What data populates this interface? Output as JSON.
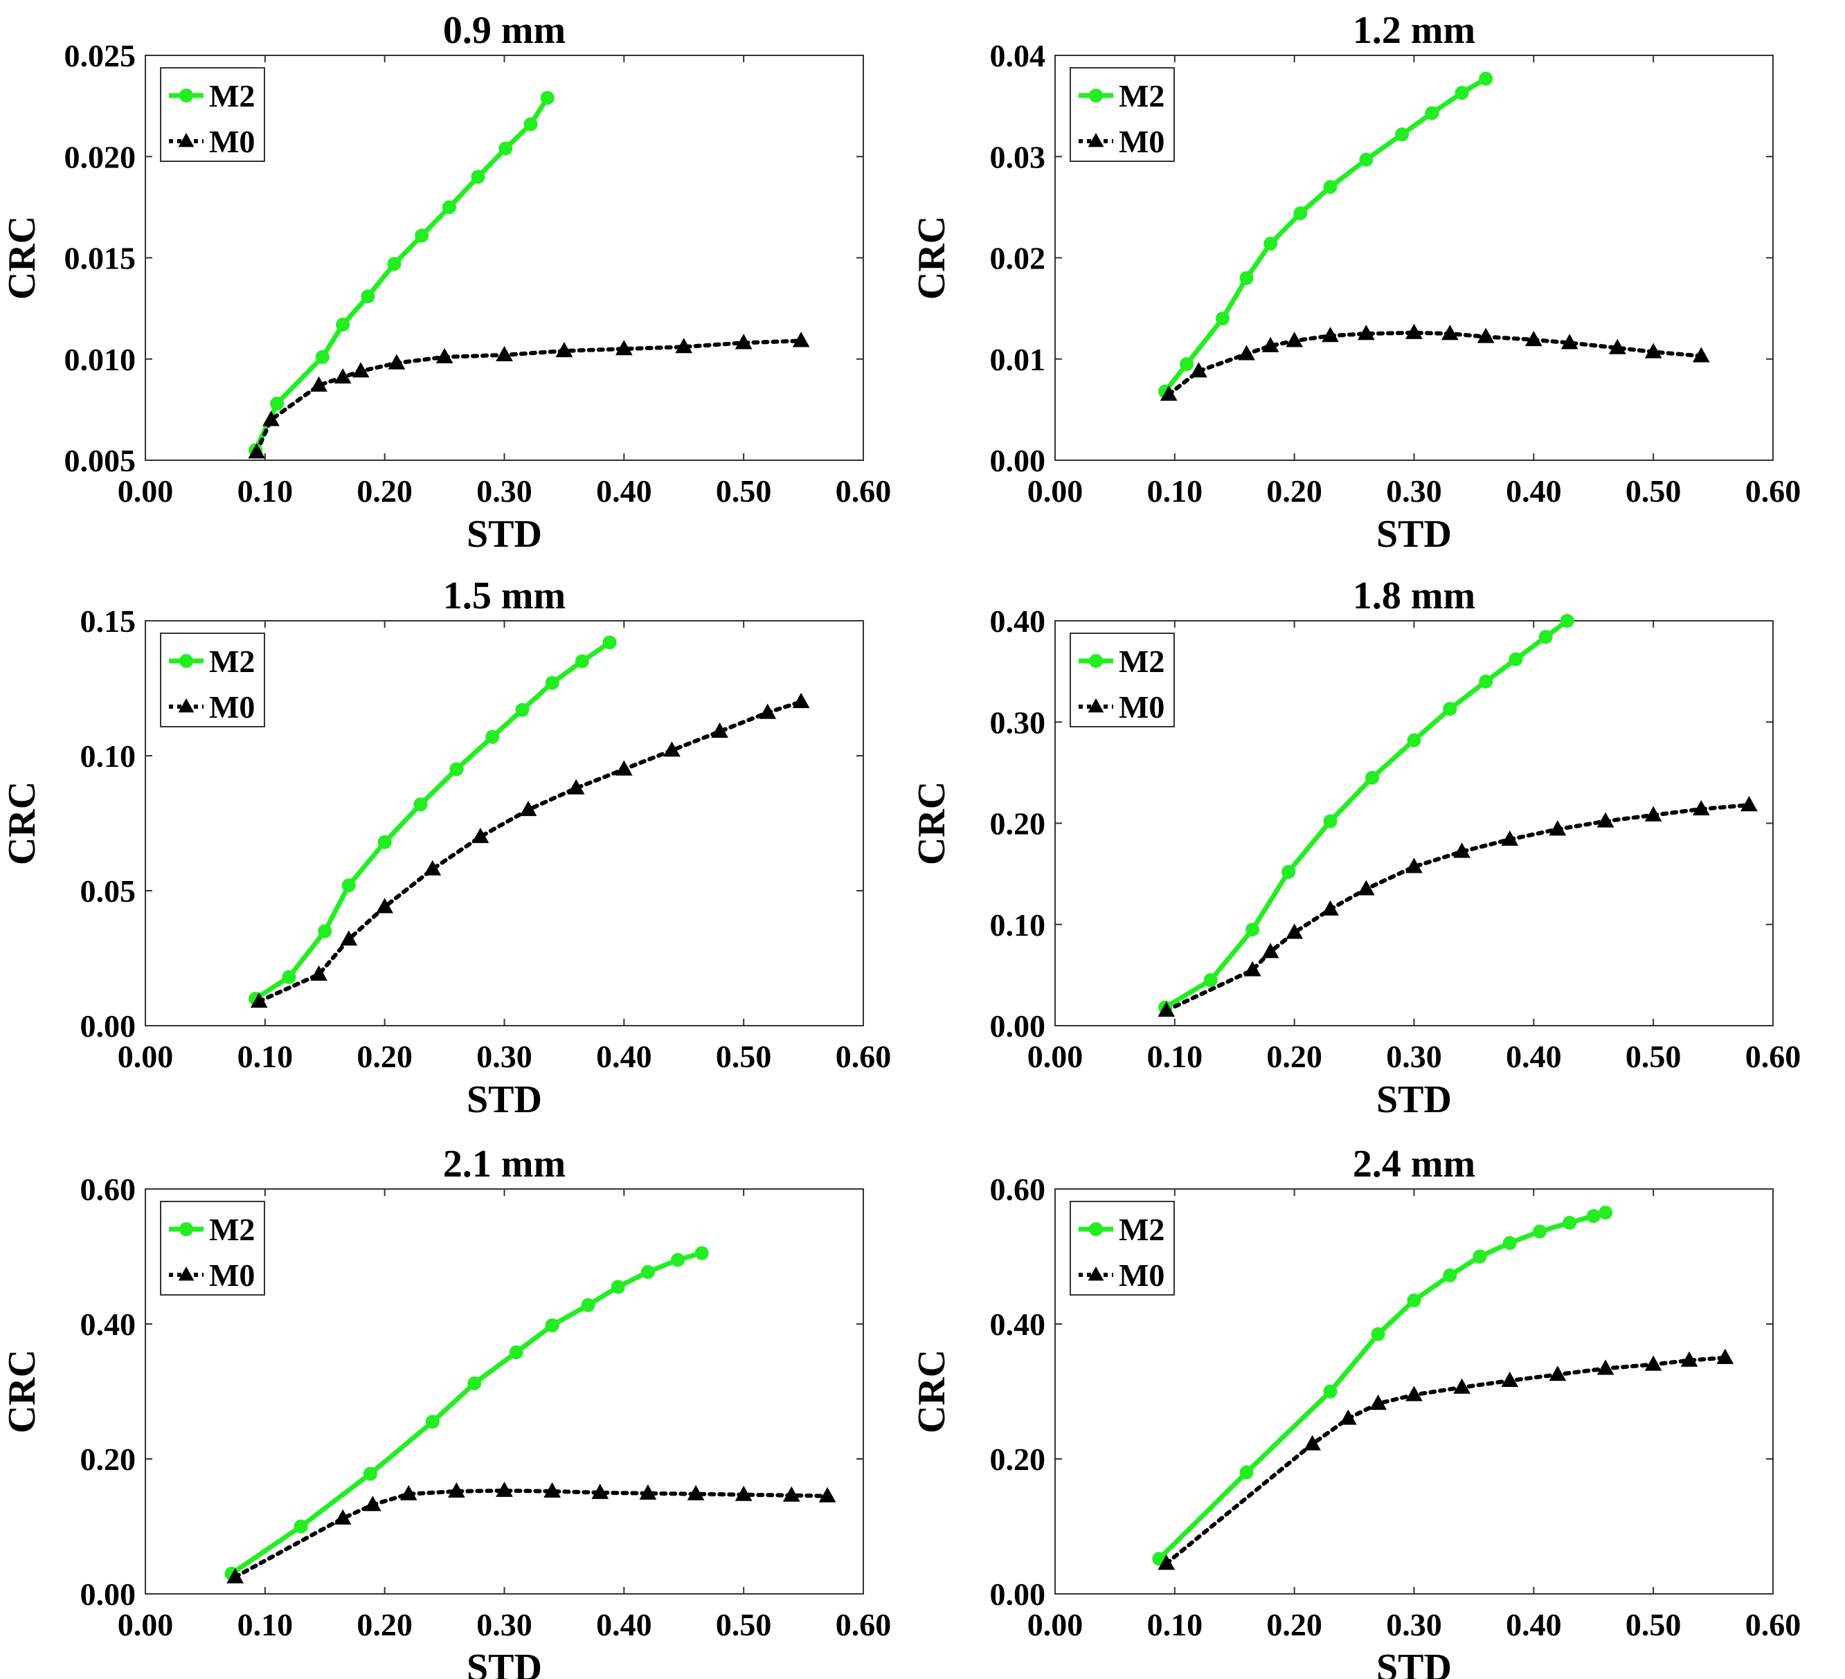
{
  "colors": {
    "m2": "#22ee22",
    "m0": "#000000",
    "axis": "#333333",
    "background": "#ffffff"
  },
  "chart_data": [
    {
      "type": "line",
      "title": "0.9 mm",
      "xlabel": "STD",
      "ylabel": "CRC",
      "xlim": [
        0,
        0.6
      ],
      "ylim": [
        0.005,
        0.025
      ],
      "xticks": [
        "0.00",
        "0.10",
        "0.20",
        "0.30",
        "0.40",
        "0.50",
        "0.60"
      ],
      "yticks": [
        "0.005",
        "0.010",
        "0.015",
        "0.020",
        "0.025"
      ],
      "legend": {
        "position": "top-left",
        "entries": [
          "M2",
          "M0"
        ]
      },
      "series": [
        {
          "name": "M2",
          "marker": "circle",
          "x": [
            0.092,
            0.11,
            0.148,
            0.165,
            0.186,
            0.208,
            0.231,
            0.254,
            0.278,
            0.301,
            0.322,
            0.336
          ],
          "y": [
            0.0055,
            0.0078,
            0.0101,
            0.0117,
            0.0131,
            0.0147,
            0.0161,
            0.0175,
            0.019,
            0.0204,
            0.0216,
            0.0229
          ]
        },
        {
          "name": "M0",
          "marker": "triangle",
          "x": [
            0.093,
            0.105,
            0.145,
            0.165,
            0.18,
            0.21,
            0.25,
            0.3,
            0.35,
            0.4,
            0.45,
            0.5,
            0.548
          ],
          "y": [
            0.0054,
            0.007,
            0.0087,
            0.0091,
            0.0094,
            0.0098,
            0.0101,
            0.0102,
            0.0104,
            0.0105,
            0.0106,
            0.0108,
            0.0109
          ]
        }
      ]
    },
    {
      "type": "line",
      "title": "1.2 mm",
      "xlabel": "STD",
      "ylabel": "CRC",
      "xlim": [
        0,
        0.6
      ],
      "ylim": [
        0,
        0.04
      ],
      "xticks": [
        "0.00",
        "0.10",
        "0.20",
        "0.30",
        "0.40",
        "0.50",
        "0.60"
      ],
      "yticks": [
        "0.00",
        "0.01",
        "0.02",
        "0.03",
        "0.04"
      ],
      "legend": {
        "position": "top-left",
        "entries": [
          "M2",
          "M0"
        ]
      },
      "series": [
        {
          "name": "M2",
          "marker": "circle",
          "x": [
            0.092,
            0.11,
            0.14,
            0.16,
            0.18,
            0.205,
            0.23,
            0.26,
            0.29,
            0.315,
            0.34,
            0.36
          ],
          "y": [
            0.0068,
            0.0095,
            0.014,
            0.018,
            0.0214,
            0.0244,
            0.027,
            0.0297,
            0.0322,
            0.0343,
            0.0363,
            0.0377
          ]
        },
        {
          "name": "M0",
          "marker": "triangle",
          "x": [
            0.095,
            0.12,
            0.16,
            0.18,
            0.2,
            0.23,
            0.26,
            0.3,
            0.33,
            0.36,
            0.4,
            0.43,
            0.47,
            0.5,
            0.54
          ],
          "y": [
            0.0065,
            0.0088,
            0.0105,
            0.0113,
            0.0118,
            0.0123,
            0.0125,
            0.0126,
            0.0125,
            0.0122,
            0.0119,
            0.0116,
            0.0111,
            0.0107,
            0.0103
          ]
        }
      ]
    },
    {
      "type": "line",
      "title": "1.5 mm",
      "xlabel": "STD",
      "ylabel": "CRC",
      "xlim": [
        0,
        0.6
      ],
      "ylim": [
        0,
        0.15
      ],
      "xticks": [
        "0.00",
        "0.10",
        "0.20",
        "0.30",
        "0.40",
        "0.50",
        "0.60"
      ],
      "yticks": [
        "0.00",
        "0.05",
        "0.10",
        "0.15"
      ],
      "legend": {
        "position": "top-left",
        "entries": [
          "M2",
          "M0"
        ]
      },
      "series": [
        {
          "name": "M2",
          "marker": "circle",
          "x": [
            0.092,
            0.12,
            0.15,
            0.17,
            0.2,
            0.23,
            0.26,
            0.29,
            0.315,
            0.34,
            0.365,
            0.388
          ],
          "y": [
            0.01,
            0.018,
            0.035,
            0.052,
            0.068,
            0.082,
            0.095,
            0.107,
            0.117,
            0.127,
            0.135,
            0.142
          ]
        },
        {
          "name": "M0",
          "marker": "triangle",
          "x": [
            0.095,
            0.145,
            0.17,
            0.2,
            0.24,
            0.28,
            0.32,
            0.36,
            0.4,
            0.44,
            0.48,
            0.52,
            0.548
          ],
          "y": [
            0.009,
            0.019,
            0.032,
            0.044,
            0.058,
            0.07,
            0.08,
            0.088,
            0.095,
            0.102,
            0.109,
            0.116,
            0.12
          ]
        }
      ]
    },
    {
      "type": "line",
      "title": "1.8 mm",
      "xlabel": "STD",
      "ylabel": "CRC",
      "xlim": [
        0,
        0.6
      ],
      "ylim": [
        0,
        0.4
      ],
      "xticks": [
        "0.00",
        "0.10",
        "0.20",
        "0.30",
        "0.40",
        "0.50",
        "0.60"
      ],
      "yticks": [
        "0.00",
        "0.10",
        "0.20",
        "0.30",
        "0.40"
      ],
      "legend": {
        "position": "top-left",
        "entries": [
          "M2",
          "M0"
        ]
      },
      "series": [
        {
          "name": "M2",
          "marker": "circle",
          "x": [
            0.092,
            0.13,
            0.165,
            0.195,
            0.23,
            0.265,
            0.3,
            0.33,
            0.36,
            0.385,
            0.41,
            0.428
          ],
          "y": [
            0.018,
            0.045,
            0.095,
            0.152,
            0.202,
            0.245,
            0.282,
            0.313,
            0.34,
            0.362,
            0.384,
            0.4
          ]
        },
        {
          "name": "M0",
          "marker": "triangle",
          "x": [
            0.093,
            0.165,
            0.18,
            0.2,
            0.23,
            0.26,
            0.3,
            0.34,
            0.38,
            0.42,
            0.46,
            0.5,
            0.54,
            0.58
          ],
          "y": [
            0.015,
            0.055,
            0.073,
            0.092,
            0.115,
            0.135,
            0.157,
            0.172,
            0.184,
            0.194,
            0.202,
            0.208,
            0.214,
            0.218
          ]
        }
      ]
    },
    {
      "type": "line",
      "title": "2.1 mm",
      "xlabel": "STD",
      "ylabel": "CRC",
      "xlim": [
        0,
        0.6
      ],
      "ylim": [
        0,
        0.6
      ],
      "xticks": [
        "0.00",
        "0.10",
        "0.20",
        "0.30",
        "0.40",
        "0.50",
        "0.60"
      ],
      "yticks": [
        "0.00",
        "0.20",
        "0.40",
        "0.60"
      ],
      "legend": {
        "position": "top-left",
        "entries": [
          "M2",
          "M0"
        ]
      },
      "series": [
        {
          "name": "M2",
          "marker": "circle",
          "x": [
            0.072,
            0.13,
            0.188,
            0.24,
            0.275,
            0.31,
            0.34,
            0.37,
            0.395,
            0.42,
            0.445,
            0.465
          ],
          "y": [
            0.03,
            0.1,
            0.178,
            0.255,
            0.312,
            0.358,
            0.398,
            0.428,
            0.455,
            0.477,
            0.495,
            0.505
          ]
        },
        {
          "name": "M0",
          "marker": "triangle",
          "x": [
            0.075,
            0.165,
            0.19,
            0.22,
            0.26,
            0.3,
            0.34,
            0.38,
            0.42,
            0.46,
            0.5,
            0.54,
            0.57
          ],
          "y": [
            0.025,
            0.112,
            0.132,
            0.148,
            0.152,
            0.153,
            0.152,
            0.15,
            0.149,
            0.148,
            0.147,
            0.146,
            0.145
          ]
        }
      ]
    },
    {
      "type": "line",
      "title": "2.4 mm",
      "xlabel": "STD",
      "ylabel": "CRC",
      "xlim": [
        0,
        0.6
      ],
      "ylim": [
        0,
        0.6
      ],
      "xticks": [
        "0.00",
        "0.10",
        "0.20",
        "0.30",
        "0.40",
        "0.50",
        "0.60"
      ],
      "yticks": [
        "0.00",
        "0.20",
        "0.40",
        "0.60"
      ],
      "legend": {
        "position": "top-left",
        "entries": [
          "M2",
          "M0"
        ]
      },
      "series": [
        {
          "name": "M2",
          "marker": "circle",
          "x": [
            0.087,
            0.16,
            0.23,
            0.27,
            0.3,
            0.33,
            0.355,
            0.38,
            0.405,
            0.43,
            0.45,
            0.46
          ],
          "y": [
            0.052,
            0.18,
            0.3,
            0.385,
            0.435,
            0.472,
            0.5,
            0.52,
            0.537,
            0.55,
            0.56,
            0.565
          ]
        },
        {
          "name": "M0",
          "marker": "triangle",
          "x": [
            0.093,
            0.215,
            0.245,
            0.27,
            0.3,
            0.34,
            0.38,
            0.42,
            0.46,
            0.5,
            0.53,
            0.56
          ],
          "y": [
            0.045,
            0.222,
            0.26,
            0.282,
            0.295,
            0.306,
            0.316,
            0.325,
            0.334,
            0.34,
            0.346,
            0.35
          ]
        }
      ]
    }
  ]
}
